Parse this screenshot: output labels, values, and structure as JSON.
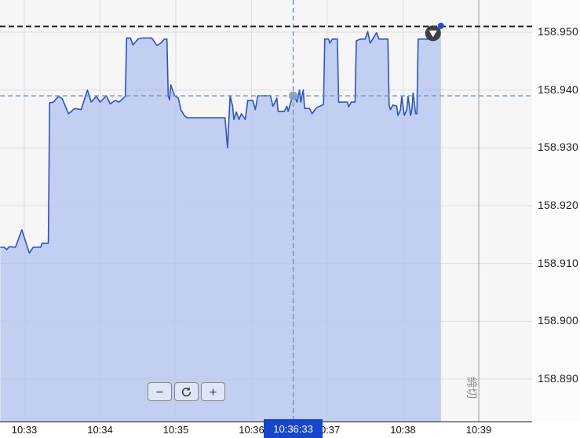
{
  "controls": {
    "zoom_out_label": "−",
    "zoom_in_label": "+"
  },
  "colors": {
    "line": "#2b55c7",
    "fill": "#b7c6ee",
    "grid": "#dcdcdc",
    "plot_bg": "#f6f6f6",
    "crosshair": "#6c95c8",
    "crosshair_dot": "#87a0bd",
    "current_line": "#1c1c1c",
    "cutoff_line": "#999999",
    "highlight_bg": "#1646cd",
    "highlight_text": "#ffffff",
    "end_dot": "#1b4fd8",
    "marker_bg": "#3d4248"
  },
  "chart_data": {
    "type": "area",
    "title": "",
    "x_axis": {
      "ticks": [
        "10:33",
        "10:34",
        "10:35",
        "10:36",
        "10:37",
        "10:38",
        "10:39"
      ],
      "seconds_per_tick": 60
    },
    "y_axis": {
      "ticks": [
        "158.950",
        "158.940",
        "158.930",
        "158.920",
        "158.910",
        "158.900",
        "158.890"
      ],
      "min": 158.884,
      "max": 158.956
    },
    "current_price": 158.951,
    "crosshair": {
      "time": "10:36:33",
      "price": 158.939
    },
    "cutoff": {
      "label": "締切",
      "at_tick": "10:39"
    },
    "series": [
      {
        "name": "price",
        "points": [
          [
            -19,
            158.9128
          ],
          [
            -16,
            158.9128
          ],
          [
            -14,
            158.9124
          ],
          [
            -12,
            158.9129
          ],
          [
            -7,
            158.9128
          ],
          [
            -2,
            158.9158
          ],
          [
            4,
            158.9118
          ],
          [
            7,
            158.9128
          ],
          [
            13,
            158.9128
          ],
          [
            14,
            158.9135
          ],
          [
            19,
            158.9135
          ],
          [
            20,
            158.9378
          ],
          [
            23,
            158.9379
          ],
          [
            27,
            158.9389
          ],
          [
            30,
            158.9385
          ],
          [
            35,
            158.9359
          ],
          [
            40,
            158.9368
          ],
          [
            45,
            158.9366
          ],
          [
            50,
            158.94
          ],
          [
            53,
            158.9379
          ],
          [
            57,
            158.9389
          ],
          [
            60,
            158.9379
          ],
          [
            65,
            158.939
          ],
          [
            68,
            158.9376
          ],
          [
            72,
            158.9382
          ],
          [
            75,
            158.9379
          ],
          [
            80,
            158.9389
          ],
          [
            81,
            158.949
          ],
          [
            84,
            158.949
          ],
          [
            86,
            158.9478
          ],
          [
            90,
            158.9488
          ],
          [
            93,
            158.949
          ],
          [
            101,
            158.949
          ],
          [
            105,
            158.9477
          ],
          [
            108,
            158.9481
          ],
          [
            111,
            158.9488
          ],
          [
            113,
            158.9488
          ],
          [
            114,
            158.939
          ],
          [
            115,
            158.9383
          ],
          [
            116,
            158.9409
          ],
          [
            119,
            158.939
          ],
          [
            122,
            158.9386
          ],
          [
            124,
            158.9366
          ],
          [
            127,
            158.9355
          ],
          [
            129,
            158.9352
          ],
          [
            159,
            158.9352
          ],
          [
            161,
            158.93
          ],
          [
            163,
            158.939
          ],
          [
            165,
            158.9372
          ],
          [
            166,
            158.9349
          ],
          [
            168,
            158.9362
          ],
          [
            170,
            158.9349
          ],
          [
            172,
            158.9359
          ],
          [
            175,
            158.9349
          ],
          [
            177,
            158.9382
          ],
          [
            181,
            158.9382
          ],
          [
            183,
            158.9366
          ],
          [
            185,
            158.939
          ],
          [
            195,
            158.939
          ],
          [
            197,
            158.9372
          ],
          [
            200,
            158.9386
          ],
          [
            201,
            158.9363
          ],
          [
            206,
            158.9363
          ],
          [
            208,
            158.9372
          ],
          [
            209,
            158.9363
          ],
          [
            212,
            158.9386
          ],
          [
            214,
            158.9389
          ],
          [
            216,
            158.9379
          ],
          [
            218,
            158.94
          ],
          [
            219,
            158.9379
          ],
          [
            221,
            158.94
          ],
          [
            222,
            158.9368
          ],
          [
            226,
            158.9368
          ],
          [
            228,
            158.9359
          ],
          [
            231,
            158.9368
          ],
          [
            232,
            158.937
          ],
          [
            237,
            158.9375
          ],
          [
            238,
            158.9488
          ],
          [
            241,
            158.9488
          ],
          [
            242,
            158.9481
          ],
          [
            244,
            158.9488
          ],
          [
            248,
            158.9488
          ],
          [
            249,
            158.9379
          ],
          [
            256,
            158.9379
          ],
          [
            257,
            158.9371
          ],
          [
            259,
            158.9379
          ],
          [
            262,
            158.9379
          ],
          [
            263,
            158.9485
          ],
          [
            266,
            158.9488
          ],
          [
            270,
            158.9488
          ],
          [
            272,
            158.9501
          ],
          [
            274,
            158.9481
          ],
          [
            276,
            158.9488
          ],
          [
            279,
            158.9499
          ],
          [
            281,
            158.9488
          ],
          [
            288,
            158.9488
          ],
          [
            289,
            158.9374
          ],
          [
            290,
            158.9366
          ],
          [
            292,
            158.9374
          ],
          [
            295,
            158.9372
          ],
          [
            296,
            158.9356
          ],
          [
            298,
            158.9366
          ],
          [
            299,
            158.9389
          ],
          [
            301,
            158.9356
          ],
          [
            303,
            158.9366
          ],
          [
            304,
            158.9389
          ],
          [
            306,
            158.9356
          ],
          [
            307,
            158.9366
          ],
          [
            308,
            158.9395
          ],
          [
            310,
            158.9359
          ],
          [
            311,
            158.9359
          ],
          [
            312,
            158.9488
          ],
          [
            324,
            158.9488
          ],
          [
            326,
            158.949
          ],
          [
            330,
            158.9511
          ]
        ]
      }
    ]
  }
}
